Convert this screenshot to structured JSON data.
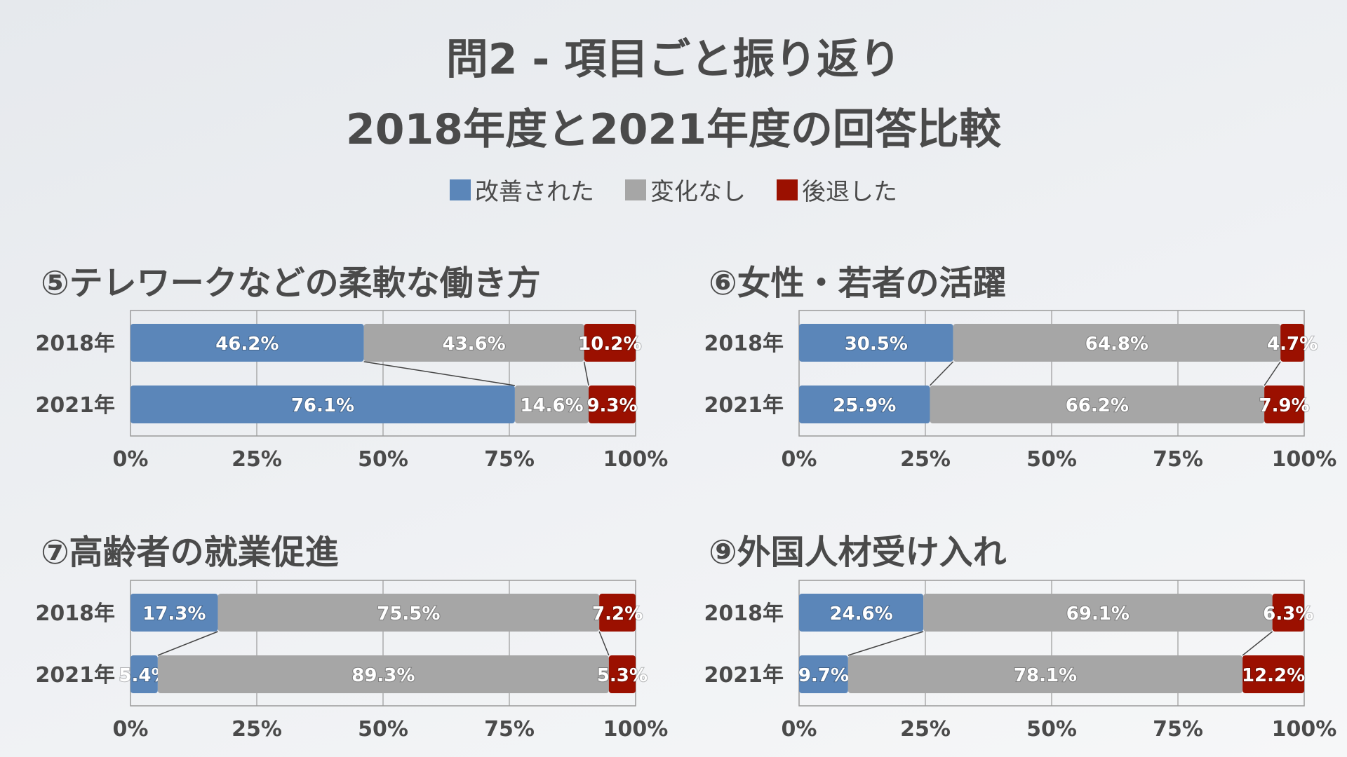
{
  "title": {
    "line1": "問2 - 項目ごと振り返り",
    "line2": "2018年度と2021年度の回答比較"
  },
  "legend": [
    {
      "label": "改善された",
      "color": "#5b86b9"
    },
    {
      "label": "変化なし",
      "color": "#a6a6a6"
    },
    {
      "label": "後退した",
      "color": "#9b1000"
    }
  ],
  "chart_data": [
    {
      "type": "bar",
      "orientation": "horizontal",
      "stacked": "percent",
      "title": "⑤テレワークなどの柔軟な働き方",
      "categories": [
        "2018年",
        "2021年"
      ],
      "xlim": [
        0,
        100
      ],
      "xticks": [
        "0%",
        "25%",
        "50%",
        "75%",
        "100%"
      ],
      "unit": "%",
      "grid": true,
      "series": [
        {
          "name": "改善された",
          "values": [
            46.2,
            76.1
          ]
        },
        {
          "name": "変化なし",
          "values": [
            43.6,
            14.6
          ]
        },
        {
          "name": "後退した",
          "values": [
            10.2,
            9.3
          ]
        }
      ]
    },
    {
      "type": "bar",
      "orientation": "horizontal",
      "stacked": "percent",
      "title": "⑥女性・若者の活躍",
      "categories": [
        "2018年",
        "2021年"
      ],
      "xlim": [
        0,
        100
      ],
      "xticks": [
        "0%",
        "25%",
        "50%",
        "75%",
        "100%"
      ],
      "unit": "%",
      "grid": true,
      "series": [
        {
          "name": "改善された",
          "values": [
            30.5,
            25.9
          ]
        },
        {
          "name": "変化なし",
          "values": [
            64.8,
            66.2
          ]
        },
        {
          "name": "後退した",
          "values": [
            4.7,
            7.9
          ]
        }
      ]
    },
    {
      "type": "bar",
      "orientation": "horizontal",
      "stacked": "percent",
      "title": "⑦高齢者の就業促進",
      "categories": [
        "2018年",
        "2021年"
      ],
      "xlim": [
        0,
        100
      ],
      "xticks": [
        "0%",
        "25%",
        "50%",
        "75%",
        "100%"
      ],
      "unit": "%",
      "grid": true,
      "series": [
        {
          "name": "改善された",
          "values": [
            17.3,
            5.4
          ]
        },
        {
          "name": "変化なし",
          "values": [
            75.5,
            89.3
          ]
        },
        {
          "name": "後退した",
          "values": [
            7.2,
            5.3
          ]
        }
      ]
    },
    {
      "type": "bar",
      "orientation": "horizontal",
      "stacked": "percent",
      "title": "⑨外国人材受け入れ",
      "categories": [
        "2018年",
        "2021年"
      ],
      "xlim": [
        0,
        100
      ],
      "xticks": [
        "0%",
        "25%",
        "50%",
        "75%",
        "100%"
      ],
      "unit": "%",
      "grid": true,
      "series": [
        {
          "name": "改善された",
          "values": [
            24.6,
            9.7
          ]
        },
        {
          "name": "変化なし",
          "values": [
            69.1,
            78.1
          ]
        },
        {
          "name": "後退した",
          "values": [
            6.3,
            12.2
          ]
        }
      ]
    }
  ]
}
